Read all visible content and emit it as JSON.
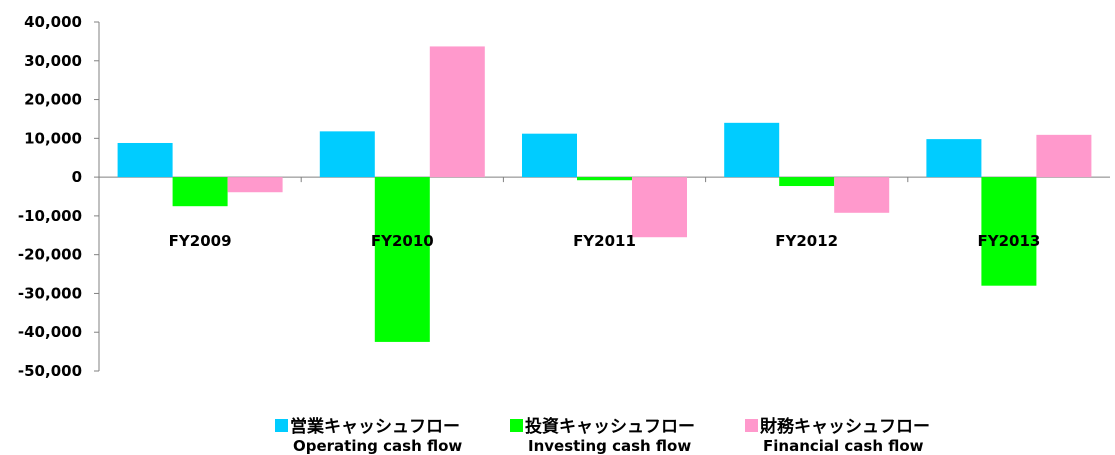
{
  "chart_data": {
    "type": "bar",
    "categories": [
      "FY2009",
      "FY2010",
      "FY2011",
      "FY2012",
      "FY2013"
    ],
    "series": [
      {
        "name": "営業キャッシュフロー",
        "name_en": "Operating cash flow",
        "color": "#00ccff",
        "values": [
          8800,
          11800,
          11200,
          14000,
          9800
        ]
      },
      {
        "name": "投資キャッシュフロー",
        "name_en": "Investing cash flow",
        "color": "#00ff00",
        "values": [
          -7500,
          -42500,
          -800,
          -2300,
          -28000
        ]
      },
      {
        "name": "財務キャッシュフロー",
        "name_en": "Financial cash flow",
        "color": "#ff99cc",
        "values": [
          -3900,
          33700,
          -15500,
          -9200,
          10900
        ]
      }
    ],
    "ylim": [
      -50000,
      40000
    ],
    "yticks": [
      40000,
      30000,
      20000,
      10000,
      0,
      -10000,
      -20000,
      -30000,
      -40000,
      -50000
    ],
    "ytick_labels": [
      "40,000",
      "30,000",
      "20,000",
      "10,000",
      "0",
      "-10,000",
      "-20,000",
      "-30,000",
      "-40,000",
      "-50,000"
    ],
    "legend_position": "bottom",
    "grid": false
  }
}
